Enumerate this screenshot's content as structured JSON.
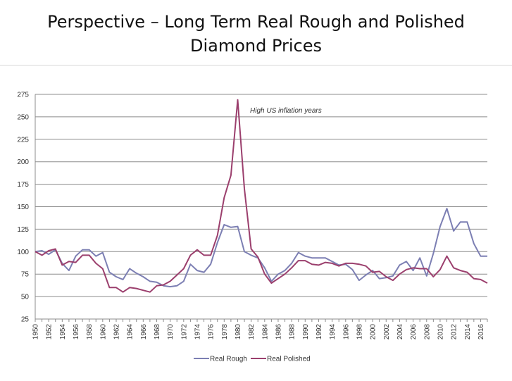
{
  "slide": {
    "title_line1": "Perspective – Long Term Real Rough and Polished",
    "title_line2": "Diamond Prices"
  },
  "chart_data": {
    "type": "line",
    "title": "",
    "xlabel": "",
    "ylabel": "",
    "ylim": [
      25,
      275
    ],
    "yticks": [
      25,
      50,
      75,
      100,
      125,
      150,
      175,
      200,
      225,
      250,
      275
    ],
    "grid": "horizontal",
    "legend_position": "bottom",
    "annotation": "High US inflation years",
    "x": [
      1950,
      1951,
      1952,
      1953,
      1954,
      1955,
      1956,
      1957,
      1958,
      1959,
      1960,
      1961,
      1962,
      1963,
      1964,
      1965,
      1966,
      1967,
      1968,
      1969,
      1970,
      1971,
      1972,
      1973,
      1974,
      1975,
      1976,
      1977,
      1978,
      1979,
      1980,
      1981,
      1982,
      1983,
      1984,
      1985,
      1986,
      1987,
      1988,
      1989,
      1990,
      1991,
      1992,
      1993,
      1994,
      1995,
      1996,
      1997,
      1998,
      1999,
      2000,
      2001,
      2002,
      2003,
      2004,
      2005,
      2006,
      2007,
      2008,
      2009,
      2010,
      2011,
      2012,
      2013,
      2014,
      2015,
      2016,
      2017
    ],
    "x_tick_labels": [
      "1950",
      "1952",
      "1954",
      "1956",
      "1958",
      "1960",
      "1962",
      "1964",
      "1966",
      "1968",
      "1970",
      "1972",
      "1974",
      "1976",
      "1978",
      "1980",
      "1982",
      "1984",
      "1986",
      "1988",
      "1990",
      "1992",
      "1994",
      "1996",
      "1998",
      "2000",
      "2002",
      "2004",
      "2006",
      "2008",
      "2010",
      "2012",
      "2014",
      "2016"
    ],
    "series": [
      {
        "name": "Real Rough",
        "color": "#7c7fb3",
        "values": [
          100,
          101,
          97,
          102,
          87,
          79,
          95,
          102,
          102,
          95,
          99,
          77,
          72,
          69,
          81,
          76,
          72,
          67,
          66,
          62,
          61,
          62,
          67,
          86,
          79,
          77,
          86,
          110,
          130,
          127,
          128,
          100,
          96,
          93,
          82,
          67,
          75,
          79,
          87,
          99,
          95,
          93,
          93,
          93,
          89,
          85,
          86,
          80,
          68,
          74,
          79,
          70,
          71,
          73,
          85,
          89,
          79,
          93,
          73,
          98,
          128,
          148,
          123,
          133,
          133,
          109,
          95,
          95
        ]
      },
      {
        "name": "Real Polished",
        "color": "#9b3f6d",
        "values": [
          100,
          96,
          101,
          103,
          85,
          89,
          88,
          96,
          96,
          87,
          81,
          60,
          60,
          55,
          60,
          59,
          57,
          55,
          62,
          63,
          67,
          74,
          81,
          96,
          102,
          96,
          96,
          118,
          160,
          185,
          269,
          170,
          103,
          94,
          75,
          65,
          70,
          75,
          82,
          90,
          90,
          86,
          85,
          88,
          87,
          84,
          87,
          87,
          86,
          84,
          77,
          78,
          72,
          68,
          75,
          80,
          82,
          81,
          81,
          72,
          80,
          95,
          82,
          79,
          77,
          70,
          69,
          65
        ]
      }
    ]
  }
}
